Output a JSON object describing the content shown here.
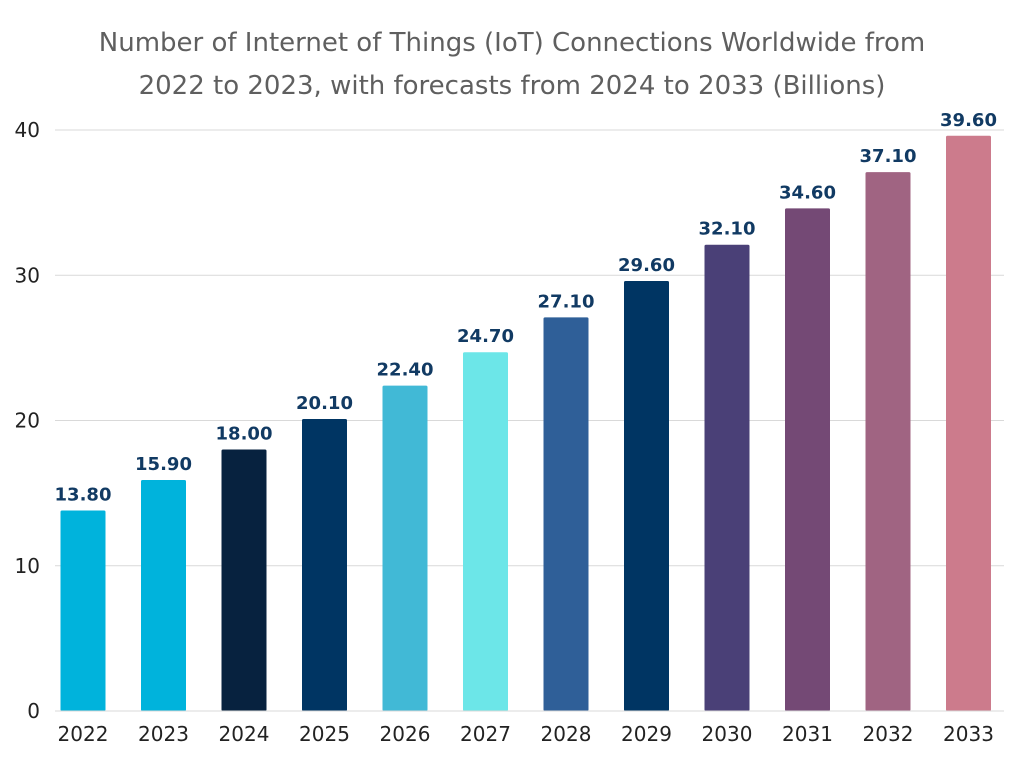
{
  "chart_data": {
    "type": "bar",
    "title_lines": [
      "Number of Internet of Things (IoT) Connections Worldwide from",
      "2022 to 2023, with forecasts from 2024 to 2033 (Billions)"
    ],
    "xlabel": "",
    "ylabel": "",
    "ylim": [
      0,
      40
    ],
    "yticks": [
      "0",
      "10",
      "20",
      "30",
      "40"
    ],
    "grid": true,
    "categories": [
      "2022",
      "2023",
      "2024",
      "2025",
      "2026",
      "2027",
      "2028",
      "2029",
      "2030",
      "2031",
      "2032",
      "2033"
    ],
    "values": [
      13.8,
      15.9,
      18.0,
      20.1,
      22.4,
      24.7,
      27.1,
      29.6,
      32.1,
      34.6,
      37.1,
      39.6
    ],
    "value_labels": [
      "13.80",
      "15.90",
      "18.00",
      "20.10",
      "22.40",
      "24.70",
      "27.10",
      "29.60",
      "32.10",
      "34.60",
      "37.10",
      "39.60"
    ],
    "bar_colors": [
      "#00b3dc",
      "#00b3dc",
      "#07223f",
      "#003563",
      "#41b9d6",
      "#6ce6e8",
      "#2f5f98",
      "#003563",
      "#4a4077",
      "#744975",
      "#a06482",
      "#cc7b8c"
    ],
    "label_color": "#113a63",
    "grid_color": "#d9d9d9"
  }
}
